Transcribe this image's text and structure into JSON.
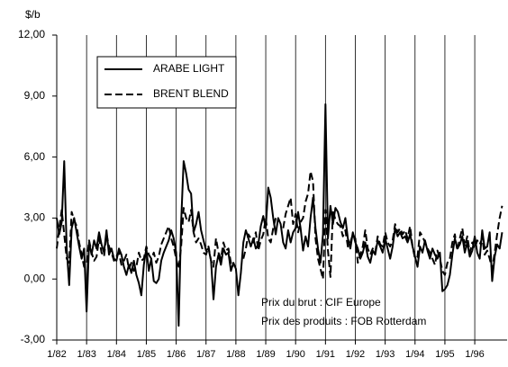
{
  "chart_data": {
    "type": "line",
    "y_label": "$/b",
    "categories": [
      "1/82",
      null,
      null,
      null,
      null,
      null,
      null,
      null,
      null,
      null,
      null,
      null,
      "1/83",
      null,
      null,
      null,
      null,
      null,
      null,
      null,
      null,
      null,
      null,
      null,
      "1/84",
      null,
      null,
      null,
      null,
      null,
      null,
      null,
      null,
      null,
      null,
      null,
      "1/85",
      null,
      null,
      null,
      null,
      null,
      null,
      null,
      null,
      null,
      null,
      null,
      "1/86",
      null,
      null,
      null,
      null,
      null,
      null,
      null,
      null,
      null,
      null,
      null,
      "1/87",
      null,
      null,
      null,
      null,
      null,
      null,
      null,
      null,
      null,
      null,
      null,
      "1/88",
      null,
      null,
      null,
      null,
      null,
      null,
      null,
      null,
      null,
      null,
      null,
      "1/89",
      null,
      null,
      null,
      null,
      null,
      null,
      null,
      null,
      null,
      null,
      null,
      "1/90",
      null,
      null,
      null,
      null,
      null,
      null,
      null,
      null,
      null,
      null,
      null,
      "1/91",
      null,
      null,
      null,
      null,
      null,
      null,
      null,
      null,
      null,
      null,
      null,
      "1/92",
      null,
      null,
      null,
      null,
      null,
      null,
      null,
      null,
      null,
      null,
      null,
      "1/93",
      null,
      null,
      null,
      null,
      null,
      null,
      null,
      null,
      null,
      null,
      null,
      "1/94",
      null,
      null,
      null,
      null,
      null,
      null,
      null,
      null,
      null,
      null,
      null,
      "1/95",
      null,
      null,
      null,
      null,
      null,
      null,
      null,
      null,
      null,
      null,
      null,
      "1/96",
      null,
      null,
      null,
      null,
      null,
      null,
      null,
      null,
      null,
      null,
      null
    ],
    "series": [
      {
        "name": "ARABE LIGHT",
        "color": "#000000",
        "dash": "solid",
        "values": [
          3.0,
          2.2,
          2.8,
          5.8,
          1.5,
          -0.3,
          2.5,
          3.0,
          2.3,
          1.6,
          1.0,
          1.5,
          -1.6,
          1.8,
          1.2,
          1.9,
          1.5,
          2.3,
          1.7,
          1.3,
          2.4,
          1.2,
          1.5,
          1.0,
          0.9,
          1.5,
          1.2,
          0.6,
          0.2,
          0.7,
          0.3,
          0.9,
          0.2,
          -0.2,
          -0.8,
          0.7,
          1.5,
          0.4,
          1.0,
          -0.1,
          -0.2,
          0.0,
          0.9,
          1.3,
          1.6,
          1.9,
          2.4,
          2.0,
          1.3,
          -2.3,
          2.8,
          5.8,
          5.2,
          4.4,
          4.2,
          2.3,
          2.7,
          3.3,
          2.4,
          1.9,
          1.4,
          1.5,
          0.9,
          -1.0,
          0.6,
          1.2,
          0.7,
          1.5,
          1.2,
          1.3,
          0.4,
          0.8,
          0.5,
          -0.8,
          0.3,
          1.8,
          2.4,
          2.0,
          1.6,
          2.0,
          1.5,
          1.7,
          2.6,
          3.1,
          2.5,
          4.5,
          4.0,
          3.0,
          2.2,
          3.0,
          2.7,
          1.8,
          1.5,
          2.4,
          1.8,
          2.3,
          2.5,
          3.3,
          2.5,
          1.4,
          2.1,
          1.6,
          3.0,
          4.0,
          2.5,
          1.5,
          0.8,
          2.2,
          8.6,
          2.0,
          3.6,
          2.7,
          3.5,
          3.3,
          2.8,
          2.5,
          3.0,
          2.0,
          1.5,
          2.3,
          1.8,
          1.5,
          1.0,
          1.3,
          1.8,
          1.1,
          0.8,
          1.4,
          1.2,
          1.9,
          1.6,
          1.3,
          2.0,
          1.5,
          1.0,
          1.6,
          2.5,
          2.1,
          2.3,
          2.0,
          2.1,
          1.8,
          2.2,
          1.6,
          1.1,
          0.6,
          1.6,
          1.3,
          1.9,
          1.4,
          1.0,
          1.5,
          1.2,
          1.0,
          1.3,
          -0.6,
          -0.5,
          -0.3,
          0.2,
          1.2,
          2.0,
          1.5,
          1.7,
          2.1,
          1.3,
          1.8,
          1.1,
          1.4,
          2.1,
          1.3,
          1.0,
          2.4,
          1.5,
          1.6,
          2.3,
          -0.1,
          1.1,
          1.7,
          1.5,
          2.3
        ]
      },
      {
        "name": "BRENT BLEND",
        "color": "#000000",
        "dash": "dashed",
        "values": [
          1.5,
          2.5,
          3.4,
          2.2,
          1.0,
          0.8,
          3.3,
          2.9,
          2.6,
          1.8,
          1.2,
          0.6,
          0.8,
          1.9,
          1.3,
          0.9,
          1.1,
          2.0,
          1.3,
          1.1,
          2.2,
          1.6,
          1.3,
          0.9,
          1.1,
          1.3,
          0.7,
          0.9,
          1.2,
          0.5,
          0.8,
          0.4,
          0.6,
          1.3,
          0.9,
          1.0,
          1.6,
          1.2,
          1.0,
          1.3,
          0.8,
          1.1,
          1.7,
          2.0,
          2.3,
          2.6,
          2.0,
          1.6,
          1.0,
          0.5,
          1.6,
          3.5,
          3.0,
          2.8,
          3.4,
          2.3,
          1.8,
          2.0,
          1.7,
          1.3,
          1.2,
          1.6,
          0.9,
          0.6,
          2.0,
          1.3,
          1.0,
          1.8,
          1.4,
          1.5,
          0.8,
          0.6,
          null,
          null,
          null,
          1.0,
          1.5,
          2.2,
          2.0,
          1.8,
          2.3,
          1.4,
          1.9,
          2.2,
          3.0,
          2.0,
          1.8,
          2.5,
          3.0,
          null,
          null,
          2.5,
          3.2,
          3.6,
          4.0,
          2.7,
          3.2,
          2.3,
          2.8,
          3.0,
          3.8,
          4.2,
          5.3,
          4.8,
          2.0,
          1.0,
          0.5,
          0.0,
          3.4,
          1.4,
          0.1,
          3.4,
          2.9,
          2.7,
          2.6,
          2.1,
          2.4,
          1.6,
          1.8,
          2.2,
          2.0,
          0.8,
          1.2,
          1.6,
          2.4,
          1.5,
          1.2,
          1.5,
          1.3,
          2.1,
          1.7,
          1.6,
          2.3,
          1.8,
          1.6,
          1.9,
          2.7,
          2.3,
          2.5,
          2.2,
          2.4,
          2.0,
          2.6,
          1.6,
          1.0,
          1.1,
          2.3,
          2.1,
          1.8,
          1.5,
          1.3,
          1.0,
          0.7,
          1.4,
          1.0,
          0.4,
          0.2,
          0.8,
          1.0,
          1.8,
          2.2,
          1.4,
          2.0,
          2.5,
          1.6,
          2.1,
          1.3,
          1.8,
          1.5,
          1.9,
          1.7,
          2.0,
          1.2,
          1.4,
          1.0,
          0.5,
          1.3,
          2.2,
          3.0,
          3.6
        ]
      }
    ],
    "ylim": [
      -3,
      12
    ],
    "yticks": [
      {
        "value": -3,
        "label": "-3,00"
      },
      {
        "value": 0,
        "label": "0,00"
      },
      {
        "value": 3,
        "label": "3,00"
      },
      {
        "value": 6,
        "label": "6,00"
      },
      {
        "value": 9,
        "label": "9,00"
      },
      {
        "value": 12,
        "label": "12,00"
      }
    ],
    "x_grid": true,
    "legend": "upper left",
    "annotations": [
      "Prix du brut : CIF Europe",
      "Prix des produits : FOB Rotterdam"
    ]
  }
}
